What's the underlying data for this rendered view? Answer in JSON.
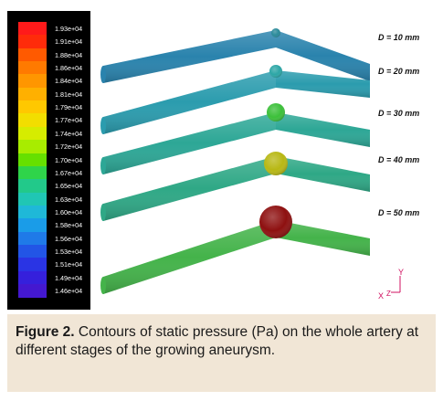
{
  "colorbar": {
    "ticks": [
      "1.93e+04",
      "1.91e+04",
      "1.88e+04",
      "1.86e+04",
      "1.84e+04",
      "1.81e+04",
      "1.79e+04",
      "1.77e+04",
      "1.74e+04",
      "1.72e+04",
      "1.70e+04",
      "1.67e+04",
      "1.65e+04",
      "1.63e+04",
      "1.60e+04",
      "1.58e+04",
      "1.56e+04",
      "1.53e+04",
      "1.51e+04",
      "1.49e+04",
      "1.46e+04"
    ],
    "colors": [
      "#ff1a1a",
      "#ff2b0a",
      "#ff5a00",
      "#ff7a00",
      "#ff9600",
      "#ffb000",
      "#ffc800",
      "#f2de00",
      "#d6ec00",
      "#a8ec00",
      "#66e000",
      "#2fd44a",
      "#22c98a",
      "#20c6b4",
      "#1fb8d8",
      "#1a9ce8",
      "#1f7ae8",
      "#2255e6",
      "#2a34e4",
      "#3520dc",
      "#4418d0"
    ]
  },
  "stages": [
    {
      "label": "D = 10 mm",
      "pipe_color": "#2a83ad",
      "bulb_color": "#2a8a9a"
    },
    {
      "label": "D = 20 mm",
      "pipe_color": "#2b9cae",
      "bulb_color": "#2ca6a6"
    },
    {
      "label": "D = 30 mm",
      "pipe_color": "#2da796",
      "bulb_color": "#3cc03a"
    },
    {
      "label": "D = 40 mm",
      "pipe_color": "#2fa886",
      "bulb_color": "#b8b814"
    },
    {
      "label": "D = 50 mm",
      "pipe_color": "#44b34a",
      "bulb_color": "#8e1010"
    }
  ],
  "axes": {
    "y": "Y",
    "x": "X",
    "z": "Z"
  },
  "caption": {
    "label": "Figure 2.",
    "text": " Contours of static pressure (Pa) on the whole artery at different stages of the growing aneurysm."
  }
}
